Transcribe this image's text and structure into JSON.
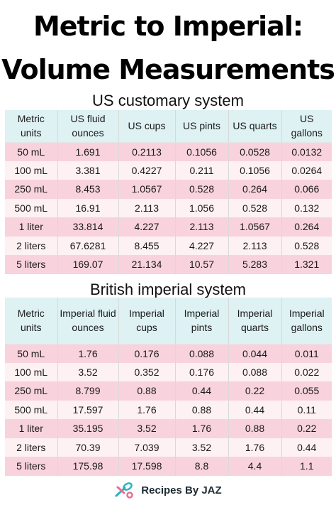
{
  "title": {
    "line1": "Metric to Imperial:",
    "line2": "Volume Measurements"
  },
  "us": {
    "heading": "US customary system",
    "headers": [
      "Metric units",
      "US fluid ounces",
      "US cups",
      "US pints",
      "US quarts",
      "US gallons"
    ],
    "rows": [
      [
        "50 mL",
        "1.691",
        "0.2113",
        "0.1056",
        "0.0528",
        "0.0132"
      ],
      [
        "100 mL",
        "3.381",
        "0.4227",
        "0.211",
        "0.1056",
        "0.0264"
      ],
      [
        "250 mL",
        "8.453",
        "1.0567",
        "0.528",
        "0.264",
        "0.066"
      ],
      [
        "500 mL",
        "16.91",
        "2.113",
        "1.056",
        "0.528",
        "0.132"
      ],
      [
        "1 liter",
        "33.814",
        "4.227",
        "2.113",
        "1.0567",
        "0.264"
      ],
      [
        "2 liters",
        "67.6281",
        "8.455",
        "4.227",
        "2.113",
        "0.528"
      ],
      [
        "5 liters",
        "169.07",
        "21.134",
        "10.57",
        "5.283",
        "1.321"
      ]
    ]
  },
  "british": {
    "heading": "British imperial system",
    "headers": [
      "Metric units",
      "Imperial fluid ounces",
      "Imperial cups",
      "Imperial pints",
      "Imperial quarts",
      "Imperial gallons"
    ],
    "rows": [
      [
        "50 mL",
        "1.76",
        "0.176",
        "0.088",
        "0.044",
        "0.011"
      ],
      [
        "100 mL",
        "3.52",
        "0.352",
        "0.176",
        "0.088",
        "0.022"
      ],
      [
        "250 mL",
        "8.799",
        "0.88",
        "0.44",
        "0.22",
        "0.055"
      ],
      [
        "500 mL",
        "17.597",
        "1.76",
        "0.88",
        "0.44",
        "0.11"
      ],
      [
        "1 liter",
        "35.195",
        "3.52",
        "1.76",
        "0.88",
        "0.22"
      ],
      [
        "2 liters",
        "70.39",
        "7.039",
        "3.52",
        "1.76",
        "0.44"
      ],
      [
        "5 liters",
        "175.98",
        "17.598",
        "8.8",
        "4.4",
        "1.1"
      ]
    ]
  },
  "footer": {
    "brand": "Recipes By JAZ",
    "logo_icon": "measuring-spoons-icon"
  },
  "colors": {
    "header_bg": "#def1f3",
    "row_pink": "#f8d3de",
    "row_light": "#fdf1f3"
  }
}
